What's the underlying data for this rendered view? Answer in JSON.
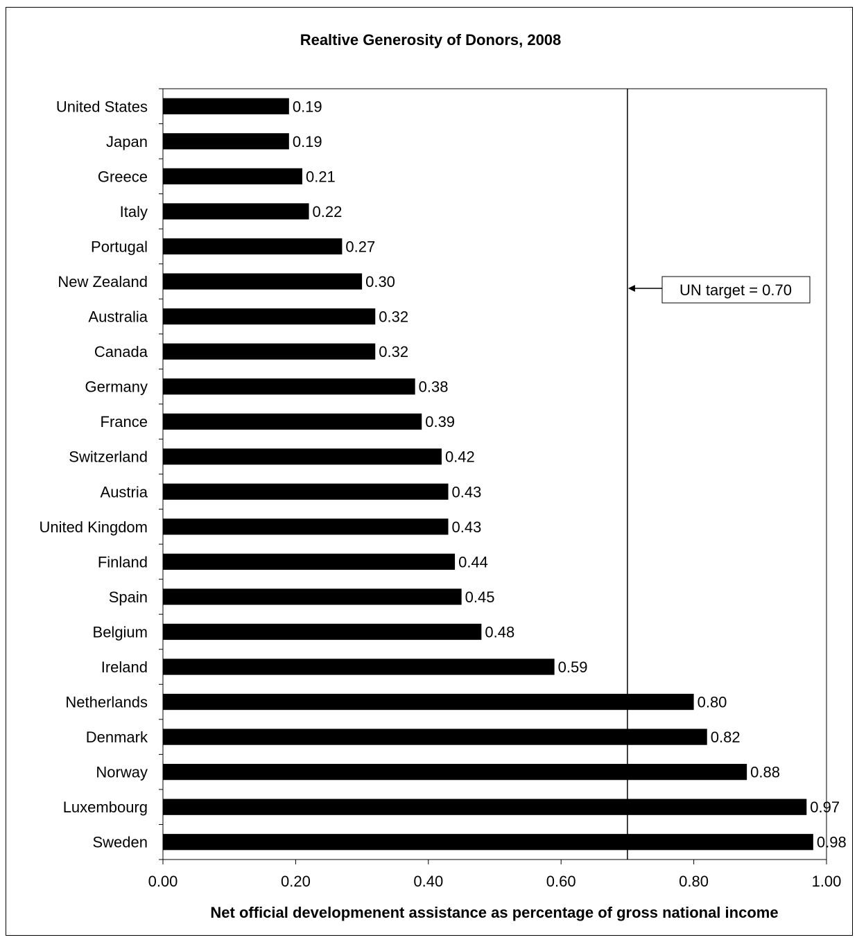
{
  "chart_data": {
    "type": "bar",
    "orientation": "horizontal",
    "title": "Realtive Generosity of Donors, 2008",
    "xlabel": "Net official developmenent assistance as percentage of gross national income",
    "ylabel": "",
    "xlim": [
      0,
      1.0
    ],
    "x_ticks": [
      "0.00",
      "0.20",
      "0.40",
      "0.60",
      "0.80",
      "1.00"
    ],
    "categories": [
      "United States",
      "Japan",
      "Greece",
      "Italy",
      "Portugal",
      "New Zealand",
      "Australia",
      "Canada",
      "Germany",
      "France",
      "Switzerland",
      "Austria",
      "United Kingdom",
      "Finland",
      "Spain",
      "Belgium",
      "Ireland",
      "Netherlands",
      "Denmark",
      "Norway",
      "Luxembourg",
      "Sweden"
    ],
    "values": [
      0.19,
      0.19,
      0.21,
      0.22,
      0.27,
      0.3,
      0.32,
      0.32,
      0.38,
      0.39,
      0.42,
      0.43,
      0.43,
      0.44,
      0.45,
      0.48,
      0.59,
      0.8,
      0.82,
      0.88,
      0.97,
      0.98
    ],
    "value_labels": [
      "0.19",
      "0.19",
      "0.21",
      "0.22",
      "0.27",
      "0.30",
      "0.32",
      "0.32",
      "0.38",
      "0.39",
      "0.42",
      "0.43",
      "0.43",
      "0.44",
      "0.45",
      "0.48",
      "0.59",
      "0.80",
      "0.82",
      "0.88",
      "0.97",
      "0.98"
    ],
    "bar_color": "#000000",
    "grid": false,
    "reference_line": {
      "value": 0.7,
      "label": "UN target = 0.70"
    }
  }
}
